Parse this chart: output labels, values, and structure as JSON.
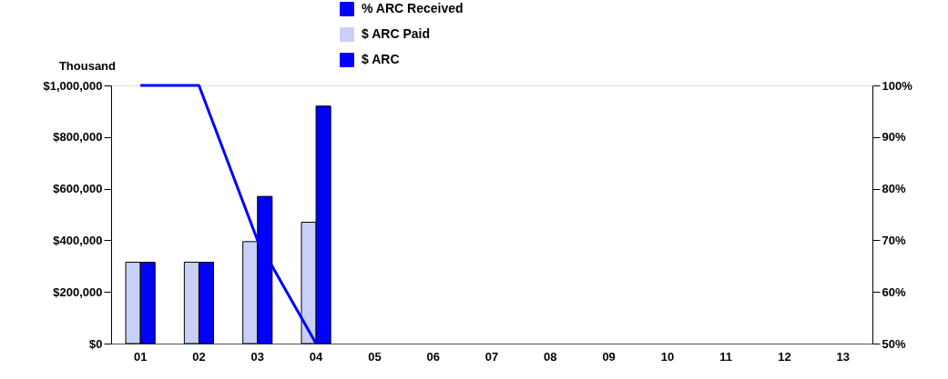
{
  "chart_data": {
    "type": "bar",
    "ylabel": "Thousand",
    "categories": [
      "01",
      "02",
      "03",
      "04",
      "05",
      "06",
      "07",
      "08",
      "09",
      "10",
      "11",
      "12",
      "13"
    ],
    "series": [
      {
        "name": "% ARC Received",
        "type": "line",
        "axis": "y2",
        "color": "#0000ff",
        "values": [
          100,
          100,
          70,
          50,
          null,
          null,
          null,
          null,
          null,
          null,
          null,
          null,
          null
        ]
      },
      {
        "name": "$ ARC Paid",
        "color": "#c8d0f8",
        "values": [
          315000,
          315000,
          395000,
          470000,
          null,
          null,
          null,
          null,
          null,
          null,
          null,
          null,
          null
        ]
      },
      {
        "name": "$ ARC",
        "color": "#0000ff",
        "values": [
          315000,
          315000,
          570000,
          920000,
          null,
          null,
          null,
          null,
          null,
          null,
          null,
          null,
          null
        ]
      }
    ],
    "ylim": [
      0,
      1000000
    ],
    "yticks": [
      {
        "value": 0,
        "label": "$0"
      },
      {
        "value": 200000,
        "label": "$200,000"
      },
      {
        "value": 400000,
        "label": "$400,000"
      },
      {
        "value": 600000,
        "label": "$600,000"
      },
      {
        "value": 800000,
        "label": "$800,000"
      },
      {
        "value": 1000000,
        "label": "$1,000,000"
      }
    ],
    "y2lim": [
      50,
      100
    ],
    "y2ticks": [
      {
        "value": 50,
        "label": "50%"
      },
      {
        "value": 60,
        "label": "60%"
      },
      {
        "value": 70,
        "label": "70%"
      },
      {
        "value": 80,
        "label": "80%"
      },
      {
        "value": 90,
        "label": "90%"
      },
      {
        "value": 100,
        "label": "100%"
      }
    ],
    "grid": false,
    "legend": "top"
  }
}
